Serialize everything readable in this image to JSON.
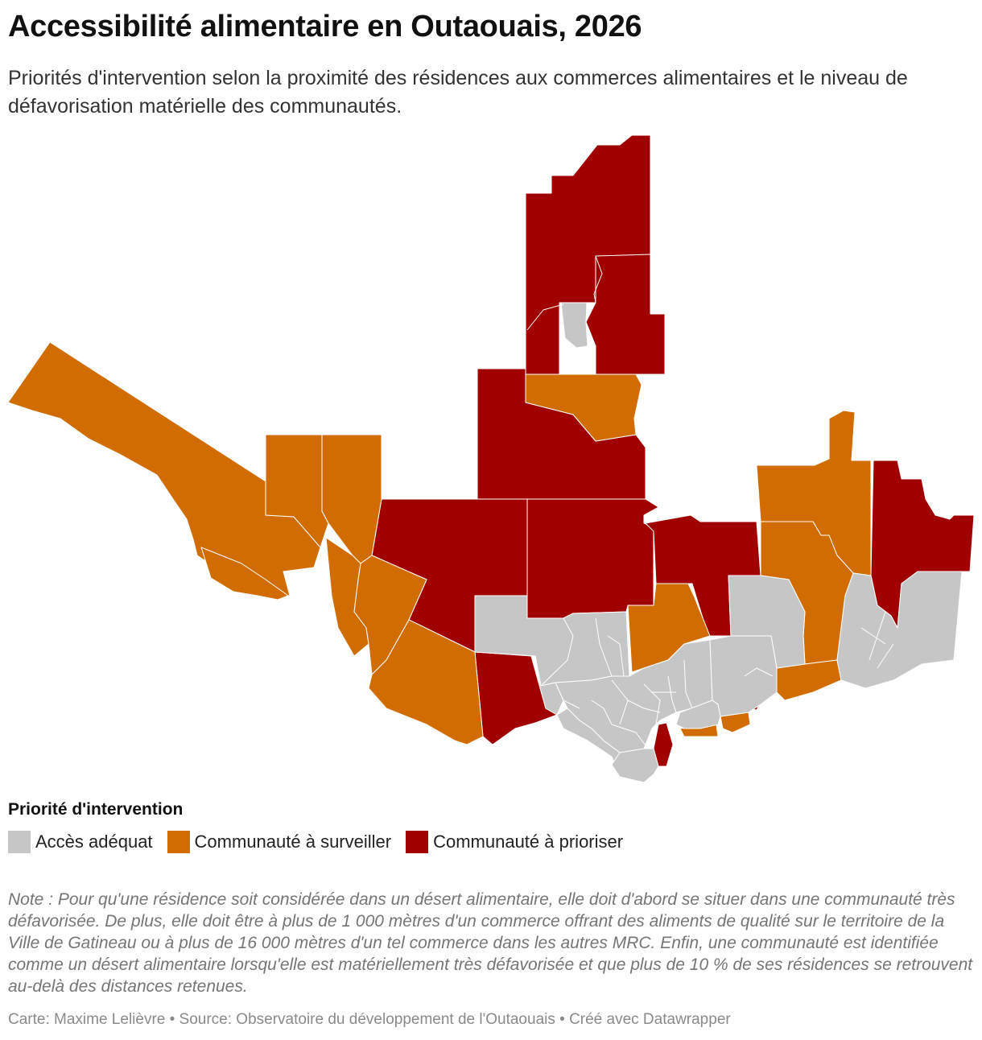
{
  "header": {
    "title": "Accessibilité alimentaire en Outaouais, 2026",
    "subtitle": "Priorités d'intervention selon la proximité des résidences aux commerces alimentaires et le niveau de défavorisation matérielle des communautés."
  },
  "colors": {
    "adequate": "#c6c6c6",
    "monitor": "#d06c00",
    "priority": "#a10000",
    "border": "#ffffff"
  },
  "legend": {
    "title": "Priorité d'intervention",
    "items": [
      {
        "label": "Accès adéquat",
        "category": "adequate"
      },
      {
        "label": "Communauté à surveiller",
        "category": "monitor"
      },
      {
        "label": "Communauté à prioriser",
        "category": "priority"
      }
    ]
  },
  "note": "Note : Pour qu'une résidence soit considérée dans un désert alimentaire, elle doit d'abord se situer dans une communauté très défavorisée. De plus, elle doit être à plus de 1 000 mètres d'un commerce offrant des aliments de qualité sur le territoire de la Ville de Gatineau ou à plus de 16 000 mètres d'un tel commerce dans les autres MRC. Enfin, une communauté est identifiée comme un désert alimentaire lorsqu'elle est matériellement très défavorisée et que plus de 10 % de ses résidences se retrouvent au-delà des distances retenues.",
  "footer": "Carte: Maxime Lelièvre • Source: Observatoire du développement de l'Outaouais • Créé avec Datawrapper"
}
